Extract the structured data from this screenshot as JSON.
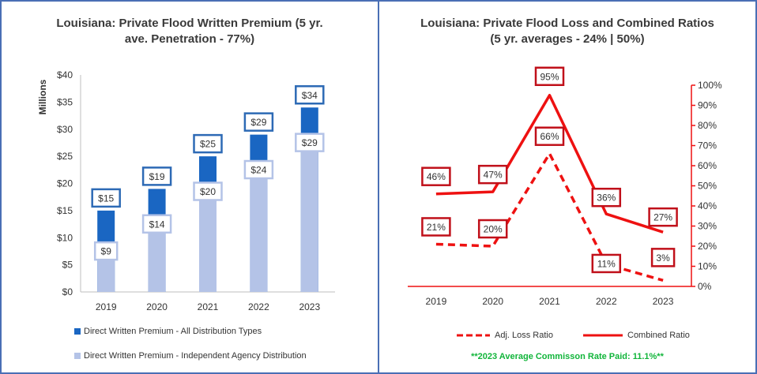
{
  "chart_data": [
    {
      "type": "bar",
      "title_lines": [
        "Louisiana: Private Flood Written Premium (5 yr.",
        "ave. Penetration - 77%)"
      ],
      "ylabel": "Millions",
      "ylim": [
        0,
        40
      ],
      "yticks": [
        "$0",
        "$5",
        "$10",
        "$15",
        "$20",
        "$25",
        "$30",
        "$35",
        "$40"
      ],
      "categories": [
        "2019",
        "2020",
        "2021",
        "2022",
        "2023"
      ],
      "series": [
        {
          "name": "Direct Written Premium - All Distribution Types",
          "values": [
            15,
            19,
            25,
            29,
            34
          ],
          "labels": [
            "$15",
            "$19",
            "$25",
            "$29",
            "$34"
          ],
          "color": "#1a66c2"
        },
        {
          "name": "Direct Written Premium - Independent Agency Distribution",
          "values": [
            9,
            14,
            20,
            24,
            29
          ],
          "labels": [
            "$9",
            "$14",
            "$20",
            "$24",
            "$29"
          ],
          "color": "#b4c3e7"
        }
      ]
    },
    {
      "type": "line",
      "title_lines": [
        "Louisiana: Private Flood Loss and Combined Ratios",
        "(5 yr. averages - 24% | 50%)"
      ],
      "ylim": [
        0,
        100
      ],
      "yticks": [
        "0%",
        "10%",
        "20%",
        "30%",
        "40%",
        "50%",
        "60%",
        "70%",
        "80%",
        "90%",
        "100%"
      ],
      "categories": [
        "2019",
        "2020",
        "2021",
        "2022",
        "2023"
      ],
      "series": [
        {
          "name": "Adj. Loss Ratio",
          "values": [
            21,
            20,
            66,
            11,
            3
          ],
          "labels": [
            "21%",
            "20%",
            "66%",
            "11%",
            "3%"
          ],
          "style": "dashed",
          "color": "#ee1111"
        },
        {
          "name": "Combined Ratio",
          "values": [
            46,
            47,
            95,
            36,
            27
          ],
          "labels": [
            "46%",
            "47%",
            "95%",
            "36%",
            "27%"
          ],
          "style": "solid",
          "color": "#ee1111"
        }
      ],
      "note": "**2023 Average Commisson Rate Paid: 11.1%**"
    }
  ]
}
